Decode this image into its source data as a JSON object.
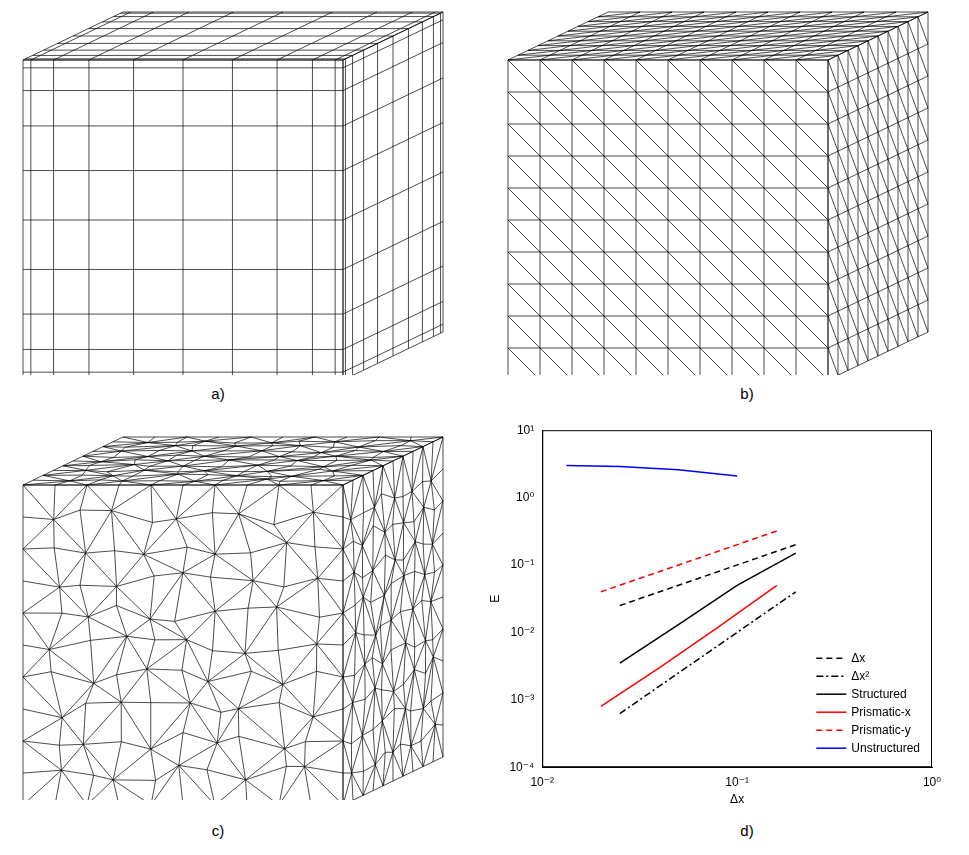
{
  "panel_labels": [
    "a)",
    "b)",
    "c)"
  ],
  "chart_data": {
    "type": "line",
    "panel_label": "d)",
    "xlabel": "Δx",
    "ylabel": "E",
    "log": true,
    "grid": false,
    "legend": "lower right",
    "xlim": [
      0.01,
      1
    ],
    "ylim": [
      0.0001,
      10
    ],
    "xticks": [
      {
        "value": 0.01,
        "label": "10⁻²"
      },
      {
        "value": 0.1,
        "label": "10⁻¹"
      },
      {
        "value": 1,
        "label": "10⁰"
      }
    ],
    "yticks": [
      {
        "value": 0.0001,
        "label": "10⁻⁴"
      },
      {
        "value": 0.001,
        "label": "10⁻³"
      },
      {
        "value": 0.01,
        "label": "10⁻²"
      },
      {
        "value": 0.1,
        "label": "10⁻¹"
      },
      {
        "value": 1,
        "label": "10⁰"
      },
      {
        "value": 10,
        "label": "10¹"
      }
    ],
    "series": [
      {
        "name": "Δx",
        "color": "#000000",
        "line_style": "dashed",
        "x": [
          0.025,
          0.2
        ],
        "values": [
          0.025,
          0.2
        ]
      },
      {
        "name": "Δx²",
        "color": "#000000",
        "line_style": "dashdot",
        "x": [
          0.025,
          0.2
        ],
        "values": [
          0.000625,
          0.04
        ]
      },
      {
        "name": "Structured",
        "color": "#000000",
        "line_style": "solid",
        "x": [
          0.025,
          0.05,
          0.1,
          0.2
        ],
        "values": [
          0.0035,
          0.013,
          0.05,
          0.15
        ]
      },
      {
        "name": "Prismatic-x",
        "color": "#ff0000",
        "line_style": "solid",
        "x": [
          0.02,
          0.04,
          0.08,
          0.16
        ],
        "values": [
          0.0008,
          0.003,
          0.012,
          0.05
        ]
      },
      {
        "name": "Prismatic-y",
        "color": "#ff0000",
        "line_style": "dashed",
        "x": [
          0.02,
          0.04,
          0.08,
          0.16
        ],
        "values": [
          0.04,
          0.08,
          0.16,
          0.32
        ]
      },
      {
        "name": "Unstructured",
        "color": "#0000ff",
        "line_style": "solid",
        "x": [
          0.0133,
          0.025,
          0.05,
          0.1
        ],
        "values": [
          3.0,
          2.9,
          2.6,
          2.1
        ]
      }
    ]
  }
}
